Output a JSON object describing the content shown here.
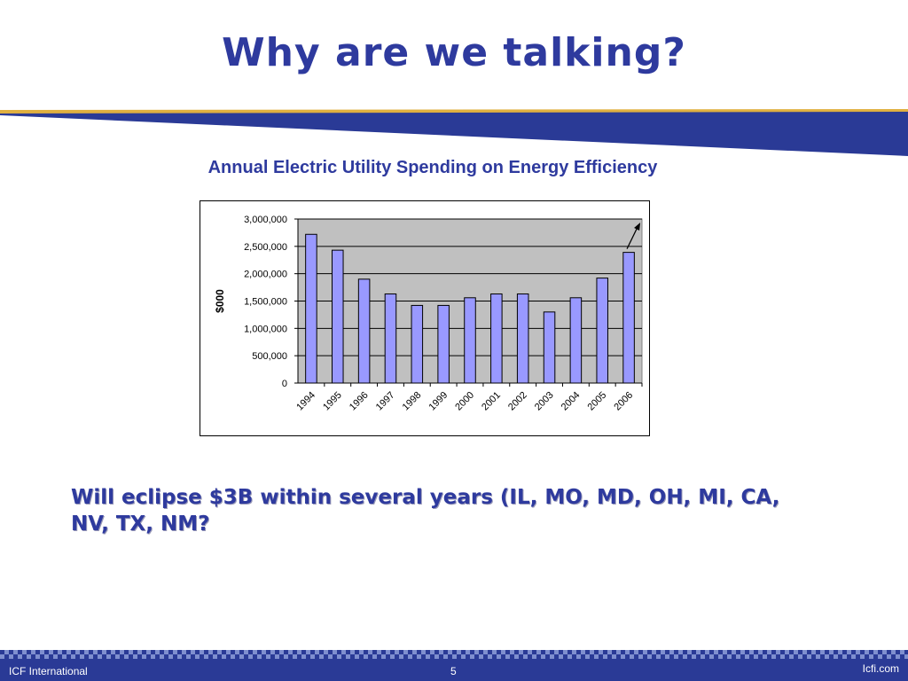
{
  "slide": {
    "title": "Why are we talking?",
    "callout": "Will eclipse $3B within several years (IL, MO, MD, OH, MI, CA, NV, TX, NM?"
  },
  "footer": {
    "left": "ICF International",
    "page": "5",
    "right": "Icfi.com"
  },
  "colors": {
    "title": "#2e3a9e",
    "bar_fill": "#9999ff",
    "plot_bg": "#c0c0c0",
    "footer": "#2a3a96"
  },
  "chart_data": {
    "type": "bar",
    "title": "Annual Electric Utility Spending on Energy Efficiency",
    "xlabel": "",
    "ylabel": "$000",
    "ylim": [
      0,
      3000000
    ],
    "yticks": [
      "0",
      "500,000",
      "1,000,000",
      "1,500,000",
      "2,000,000",
      "2,500,000",
      "3,000,000"
    ],
    "categories": [
      "1994",
      "1995",
      "1996",
      "1997",
      "1998",
      "1999",
      "2000",
      "2001",
      "2002",
      "2003",
      "2004",
      "2005",
      "2006"
    ],
    "values": [
      2720000,
      2430000,
      1900000,
      1630000,
      1420000,
      1420000,
      1560000,
      1630000,
      1630000,
      1300000,
      1560000,
      1920000,
      2390000
    ],
    "grid": true,
    "legend": "none",
    "annotation": "upward arrow above 2006 bar"
  }
}
